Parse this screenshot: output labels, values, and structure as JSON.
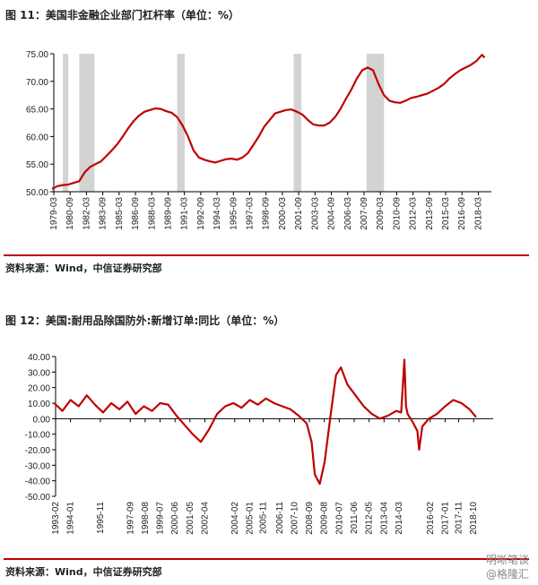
{
  "fig1": {
    "title": "图 11：美国非金融企业部门杠杆率（单位：%）",
    "source": "资料来源：Wind，中信证券研究部"
  },
  "fig2": {
    "title": "图 12：美国:耐用品除国防外:新增订单:同比（单位：%）",
    "source": "资料来源：Wind，中信证券研究部"
  },
  "watermark": {
    "line1": "明晰笔谈",
    "line2": "@格隆汇"
  },
  "colors": {
    "line": "#c00000",
    "recession": "#d3d3d3",
    "rule": "#c00000"
  },
  "chart_data": [
    {
      "type": "line",
      "title": "图 11：美国非金融企业部门杠杆率（单位：%）",
      "ylim": [
        50,
        75
      ],
      "yticks": [
        "50.00",
        "55.00",
        "60.00",
        "65.00",
        "70.00",
        "75.00"
      ],
      "xticks": [
        "1979-03",
        "1980-09",
        "1982-03",
        "1983-09",
        "1985-03",
        "1986-09",
        "1988-03",
        "1989-09",
        "1991-03",
        "1992-09",
        "1994-03",
        "1995-09",
        "1997-03",
        "1998-09",
        "2000-03",
        "2001-09",
        "2003-03",
        "2004-09",
        "2006-03",
        "2007-09",
        "2009-03",
        "2010-09",
        "2012-03",
        "2013-09",
        "2015-03",
        "2016-09",
        "2018-03"
      ],
      "recessions": [
        [
          1980.0,
          1980.5
        ],
        [
          1981.5,
          1982.9
        ],
        [
          1990.5,
          1991.2
        ],
        [
          2001.2,
          2001.9
        ],
        [
          2007.9,
          2009.5
        ]
      ],
      "series": [
        {
          "x": [
            1979.0,
            1979.5,
            1980.0,
            1980.5,
            1981.0,
            1981.5,
            1982.0,
            1982.5,
            1983.0,
            1983.5,
            1984.0,
            1984.5,
            1985.0,
            1985.5,
            1986.0,
            1986.5,
            1987.0,
            1987.5,
            1988.0,
            1988.5,
            1989.0,
            1989.5,
            1990.0,
            1990.5,
            1991.0,
            1991.5,
            1992.0,
            1992.5,
            1993.0,
            1993.5,
            1994.0,
            1994.5,
            1995.0,
            1995.5,
            1996.0,
            1996.5,
            1997.0,
            1997.5,
            1998.0,
            1998.5,
            1999.0,
            1999.5,
            2000.0,
            2000.5,
            2001.0,
            2001.5,
            2002.0,
            2002.5,
            2003.0,
            2003.5,
            2004.0,
            2004.5,
            2005.0,
            2005.5,
            2006.0,
            2006.5,
            2007.0,
            2007.5,
            2008.0,
            2008.5,
            2009.0,
            2009.5,
            2010.0,
            2010.5,
            2011.0,
            2011.5,
            2012.0,
            2012.5,
            2013.0,
            2013.5,
            2014.0,
            2014.5,
            2015.0,
            2015.5,
            2016.0,
            2016.5,
            2017.0,
            2017.5,
            2018.0,
            2018.5,
            2018.75
          ],
          "values": [
            50.5,
            51.0,
            51.2,
            51.3,
            51.6,
            51.9,
            53.5,
            54.5,
            55.0,
            55.5,
            56.5,
            57.5,
            58.6,
            60.0,
            61.5,
            62.8,
            63.8,
            64.5,
            64.8,
            65.1,
            65.0,
            64.6,
            64.3,
            63.5,
            62.0,
            60.0,
            57.5,
            56.2,
            55.8,
            55.5,
            55.3,
            55.6,
            55.9,
            56.0,
            55.8,
            56.2,
            57.0,
            58.5,
            60.0,
            61.8,
            63.0,
            64.2,
            64.5,
            64.8,
            64.9,
            64.5,
            64.0,
            63.0,
            62.2,
            62.0,
            62.0,
            62.5,
            63.5,
            65.0,
            66.8,
            68.5,
            70.5,
            72.0,
            72.5,
            72.0,
            69.5,
            67.5,
            66.5,
            66.2,
            66.1,
            66.5,
            67.0,
            67.2,
            67.5,
            67.8,
            68.3,
            68.8,
            69.5,
            70.5,
            71.3,
            72.0,
            72.5,
            73.0,
            73.7,
            74.8,
            74.3
          ]
        }
      ]
    },
    {
      "type": "line",
      "title": "图 12：美国:耐用品除国防外:新增订单:同比（单位：%）",
      "ylim": [
        -50,
        40
      ],
      "yticks": [
        "-50.00",
        "-40.00",
        "-30.00",
        "-20.00",
        "-10.00",
        "0.00",
        "10.00",
        "20.00",
        "30.00",
        "40.00"
      ],
      "xticks": [
        "1993-02",
        "1994-01",
        "1995-11",
        "1997-09",
        "1998-08",
        "1999-07",
        "2000-06",
        "2001-05",
        "2002-04",
        "2004-02",
        "2005-01",
        "2005-11",
        "2006-11",
        "2007-10",
        "2008-09",
        "2009-08",
        "2010-07",
        "2011-06",
        "2012-05",
        "2013-04",
        "2014-03",
        "2016-02",
        "2017-01",
        "2017-11",
        "2018-10"
      ],
      "series": [
        {
          "x": [
            1993.0,
            1993.5,
            1994.0,
            1994.5,
            1995.0,
            1995.5,
            1996.0,
            1996.5,
            1997.0,
            1997.5,
            1998.0,
            1998.5,
            1999.0,
            1999.5,
            2000.0,
            2000.5,
            2001.0,
            2001.5,
            2002.0,
            2002.5,
            2003.0,
            2003.5,
            2004.0,
            2004.5,
            2005.0,
            2005.5,
            2006.0,
            2006.5,
            2007.0,
            2007.5,
            2008.0,
            2008.5,
            2008.8,
            2009.0,
            2009.3,
            2009.6,
            2010.0,
            2010.3,
            2010.6,
            2011.0,
            2011.5,
            2012.0,
            2012.5,
            2013.0,
            2013.5,
            2014.0,
            2014.3,
            2014.5,
            2014.6,
            2014.7,
            2015.0,
            2015.3,
            2015.4,
            2015.6,
            2016.0,
            2016.5,
            2017.0,
            2017.5,
            2018.0,
            2018.5,
            2018.9
          ],
          "values": [
            10,
            5,
            12,
            8,
            15,
            9,
            4,
            10,
            6,
            11,
            3,
            8,
            5,
            10,
            9,
            2,
            -4,
            -10,
            -15,
            -7,
            3,
            8,
            10,
            7,
            12,
            9,
            13,
            10,
            8,
            6,
            2,
            -3,
            -15,
            -36,
            -42,
            -28,
            5,
            28,
            33,
            22,
            15,
            8,
            3,
            0,
            2,
            5,
            4,
            38,
            8,
            3,
            -2,
            -8,
            -20,
            -5,
            0,
            3,
            8,
            12,
            10,
            6,
            1
          ]
        }
      ]
    }
  ]
}
